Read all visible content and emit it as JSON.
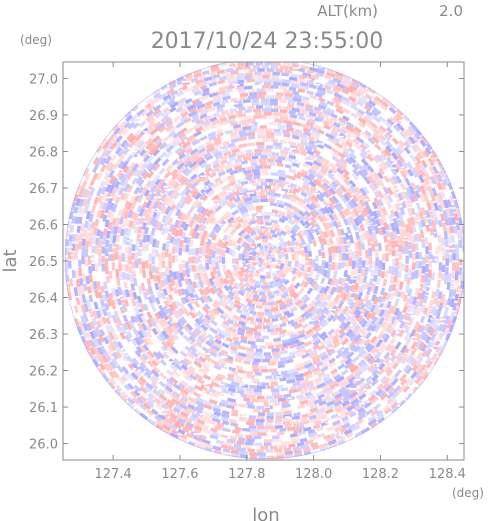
{
  "chart_data": {
    "type": "heatmap",
    "projection": "polar-radar-sector-map",
    "title": "2017/10/24 23:55:00",
    "altitude_label": "ALT(km)",
    "altitude_value": "2.0",
    "xlabel": "lon",
    "ylabel": "lat",
    "x_unit": "(deg)",
    "y_unit": "(deg)",
    "xlim": [
      127.25,
      128.45
    ],
    "ylim": [
      25.955,
      27.045
    ],
    "x_ticks": [
      "127.4",
      "127.6",
      "127.8",
      "128.0",
      "128.2",
      "128.4"
    ],
    "x_tick_values": [
      127.4,
      127.6,
      127.8,
      128.0,
      128.2,
      128.4
    ],
    "y_ticks": [
      "26.0",
      "26.1",
      "26.2",
      "26.3",
      "26.4",
      "26.5",
      "26.6",
      "26.7",
      "26.8",
      "26.9",
      "27.0"
    ],
    "y_tick_values": [
      26.0,
      26.1,
      26.2,
      26.3,
      26.4,
      26.5,
      26.6,
      26.7,
      26.8,
      26.9,
      27.0
    ],
    "center": {
      "lon": 127.855,
      "lat": 26.506
    },
    "radius_deg_lon": 0.6,
    "grid": false,
    "colors": {
      "positive": "#ff9c9c",
      "negative": "#9c9cff",
      "neutral": "#ffffff",
      "axis": "#8a8a8a"
    }
  }
}
